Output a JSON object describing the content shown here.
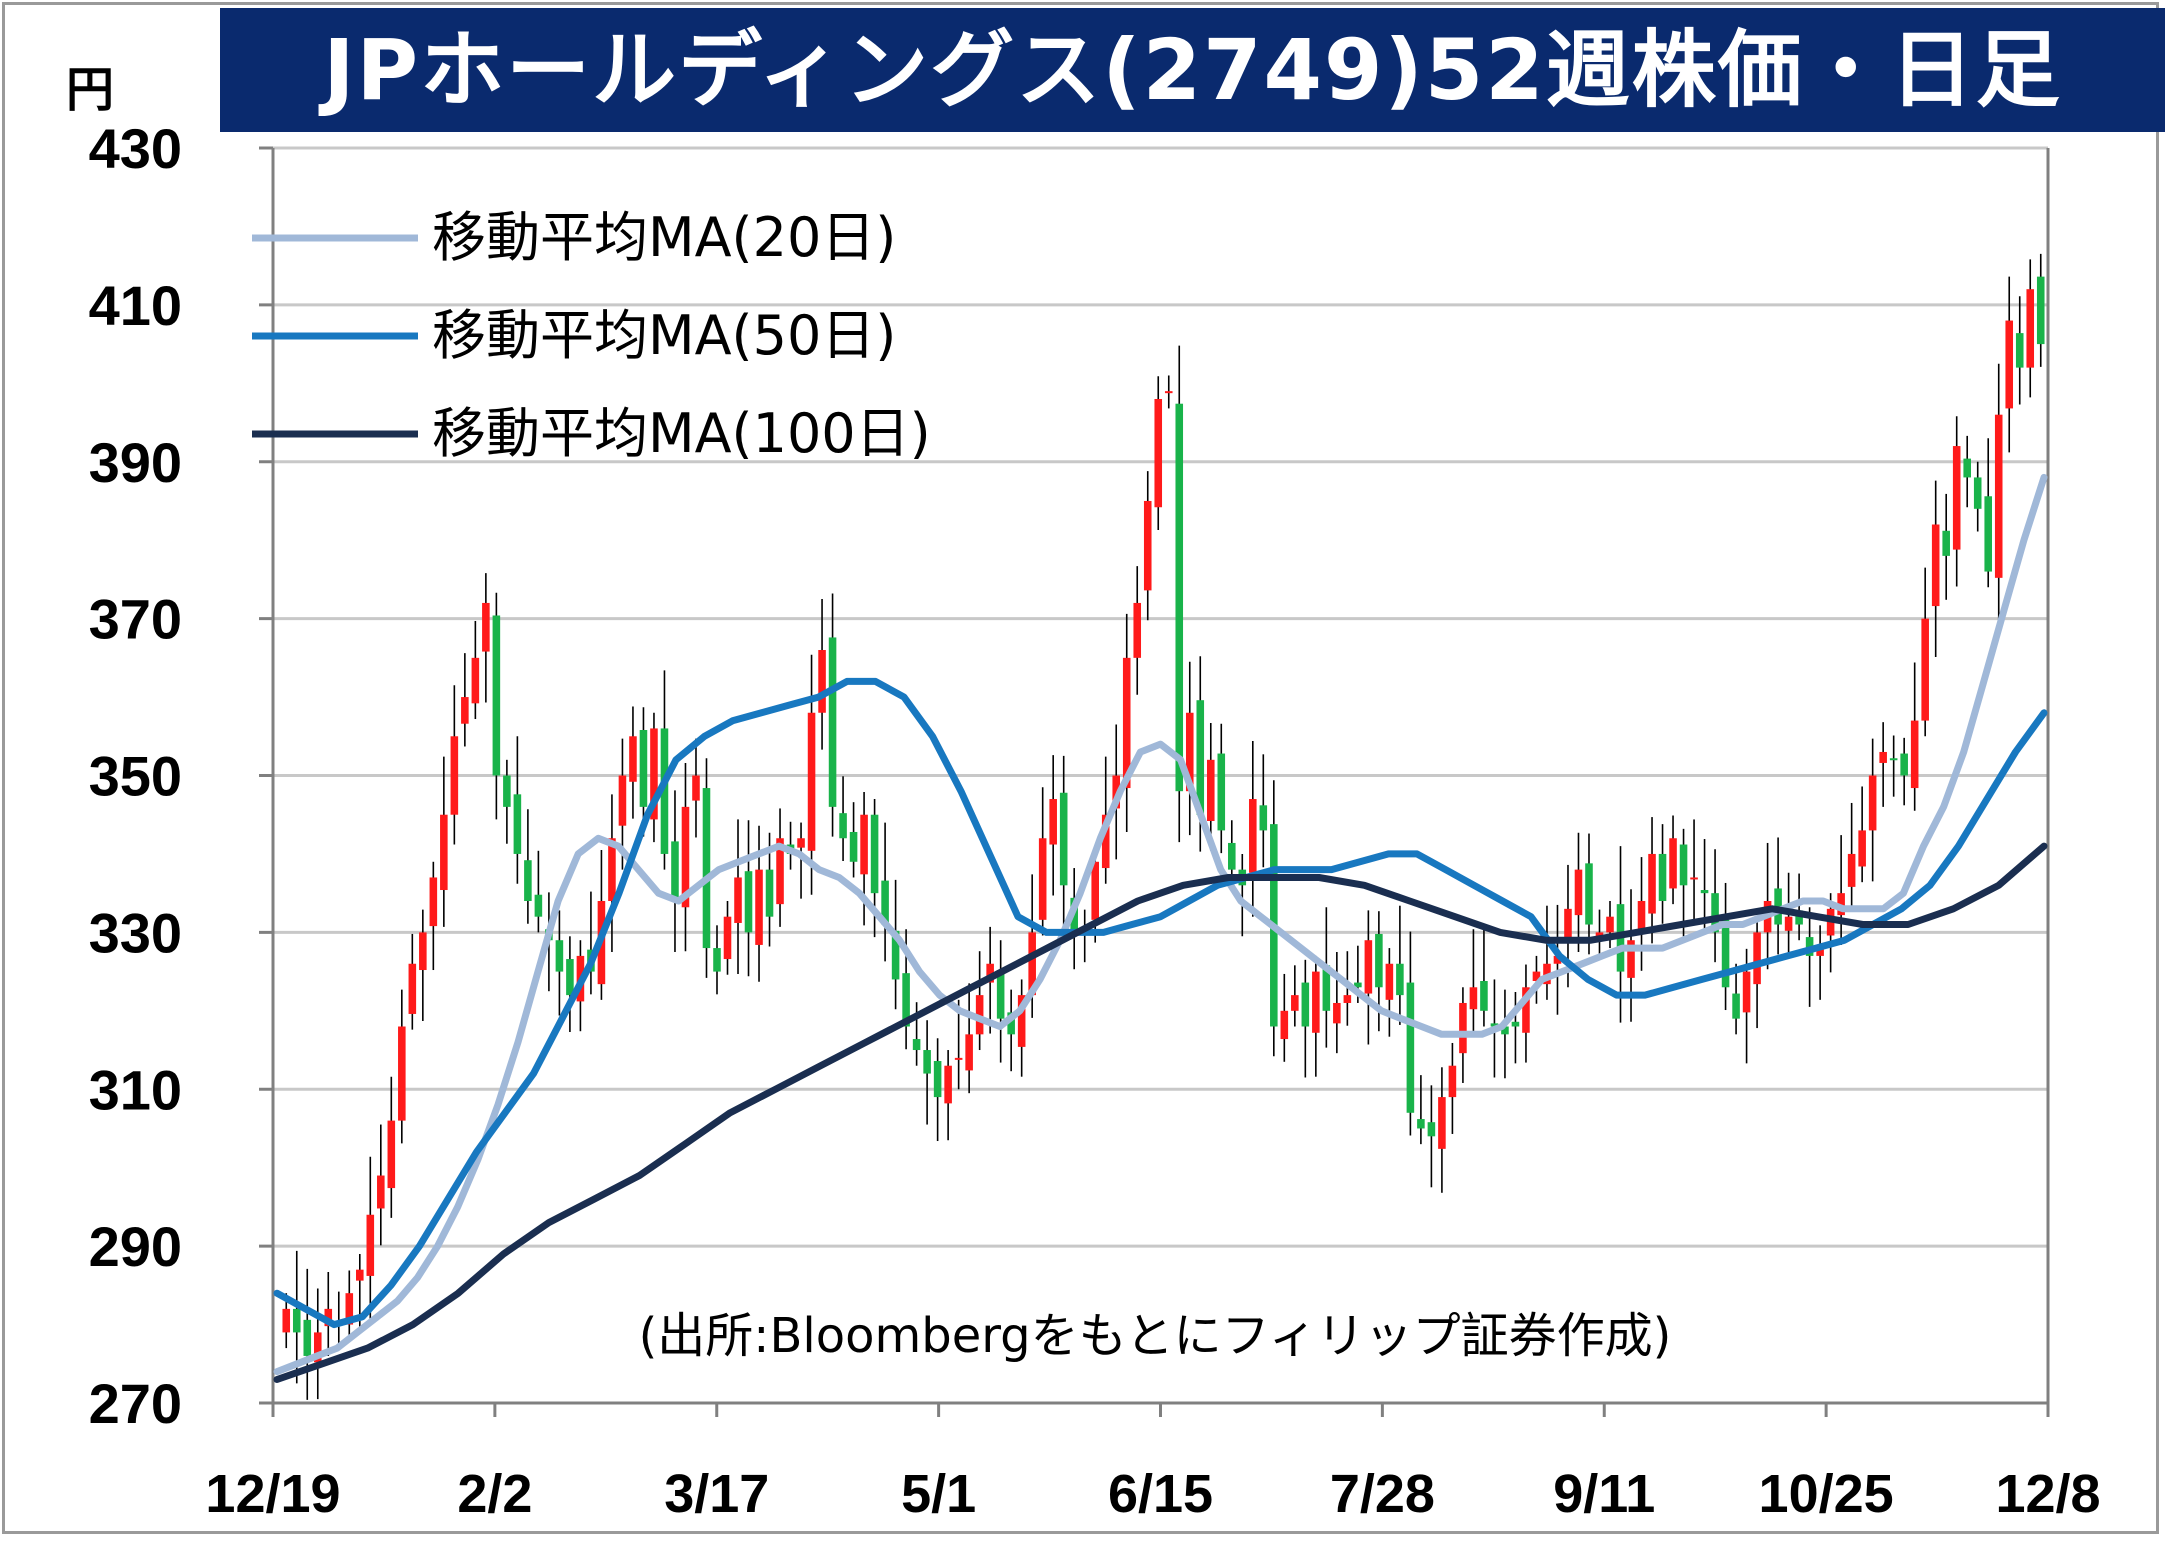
{
  "title": "JPホールディングス(2749)52週株価・日足",
  "unit": "円",
  "source": "(出所:Bloombergをもとにフィリップ証券作成)",
  "chart_data": {
    "type": "candlestick",
    "ylim": [
      270,
      430
    ],
    "yticks": [
      270,
      290,
      310,
      330,
      350,
      370,
      390,
      410,
      430
    ],
    "xticks": [
      "12/19",
      "2/2",
      "3/17",
      "5/1",
      "6/15",
      "7/28",
      "9/11",
      "10/25",
      "12/8"
    ],
    "grid": "horizontal",
    "legend_position": "top-left",
    "up_color": "#ff1a1a",
    "down_color": "#19b34a",
    "closes": [
      282,
      279,
      276,
      279,
      282,
      280,
      284,
      287,
      294,
      299,
      306,
      318,
      326,
      330,
      337,
      345,
      355,
      360,
      365,
      372,
      350,
      346,
      340,
      334,
      332,
      329,
      325,
      322,
      327,
      325,
      334,
      342,
      350,
      355,
      346,
      356,
      340,
      334,
      346,
      350,
      328,
      325,
      332,
      337,
      330,
      338,
      332,
      342,
      340,
      342,
      358,
      366,
      346,
      342,
      339,
      345,
      335,
      331,
      324,
      318,
      315,
      312,
      309,
      313,
      314,
      317,
      322,
      326,
      319,
      317,
      322,
      330,
      342,
      347,
      336,
      330,
      330,
      339,
      345,
      350,
      365,
      372,
      385,
      398,
      399,
      348,
      358,
      345,
      352,
      343,
      338,
      336,
      347,
      343,
      318,
      320,
      322,
      318,
      325,
      320,
      321,
      322,
      323,
      329,
      323,
      326,
      322,
      307,
      305,
      304,
      309,
      313,
      321,
      323,
      320,
      318,
      317,
      318,
      323,
      325,
      326,
      327,
      333,
      338,
      331,
      330,
      332,
      325,
      329,
      334,
      340,
      334,
      342,
      336,
      337,
      335,
      330,
      323,
      319,
      325,
      330,
      334,
      331,
      332,
      331,
      327,
      328,
      333,
      335,
      340,
      343,
      350,
      353,
      352,
      350,
      357,
      370,
      382,
      378,
      392,
      388,
      384,
      376,
      396,
      408,
      402,
      412,
      405
    ],
    "series": [
      {
        "name": "移動平均MA(20日)",
        "color": "#a0b8d8",
        "values": [
          274,
          275,
          276,
          277,
          279,
          281,
          283,
          286,
          290,
          295,
          301,
          308,
          316,
          325,
          334,
          340,
          342,
          341,
          338,
          335,
          334,
          336,
          338,
          339,
          340,
          341,
          340,
          338,
          337,
          335,
          332,
          329,
          325,
          322,
          320,
          319,
          318,
          320,
          324,
          329,
          335,
          342,
          348,
          353,
          354,
          352,
          345,
          338,
          334,
          332,
          330,
          328,
          326,
          324,
          322,
          320,
          319,
          318,
          317,
          317,
          317,
          318,
          321,
          324,
          325,
          326,
          327,
          328,
          328,
          328,
          329,
          330,
          331,
          331,
          332,
          333,
          334,
          334,
          333,
          333,
          333,
          335,
          341,
          346,
          353,
          362,
          371,
          380,
          388
        ]
      },
      {
        "name": "移動平均MA(50日)",
        "color": "#1878c0",
        "values": [
          284,
          282,
          280,
          281,
          285,
          290,
          296,
          302,
          307,
          312,
          319,
          326,
          335,
          345,
          352,
          355,
          357,
          358,
          359,
          360,
          362,
          362,
          360,
          355,
          348,
          340,
          332,
          330,
          330,
          330,
          331,
          332,
          334,
          336,
          337,
          338,
          338,
          338,
          339,
          340,
          340,
          338,
          336,
          334,
          332,
          327,
          324,
          322,
          322,
          323,
          324,
          325,
          326,
          327,
          328,
          329,
          331,
          333,
          336,
          341,
          347,
          353,
          358
        ]
      },
      {
        "name": "移動平均MA(100日)",
        "color": "#1a2e50",
        "values": [
          273,
          275,
          277,
          280,
          284,
          289,
          293,
          296,
          299,
          303,
          307,
          310,
          313,
          316,
          319,
          322,
          325,
          328,
          331,
          334,
          336,
          337,
          337,
          337,
          336,
          334,
          332,
          330,
          329,
          329,
          330,
          331,
          332,
          333,
          332,
          331,
          331,
          333,
          336,
          341
        ]
      }
    ]
  }
}
